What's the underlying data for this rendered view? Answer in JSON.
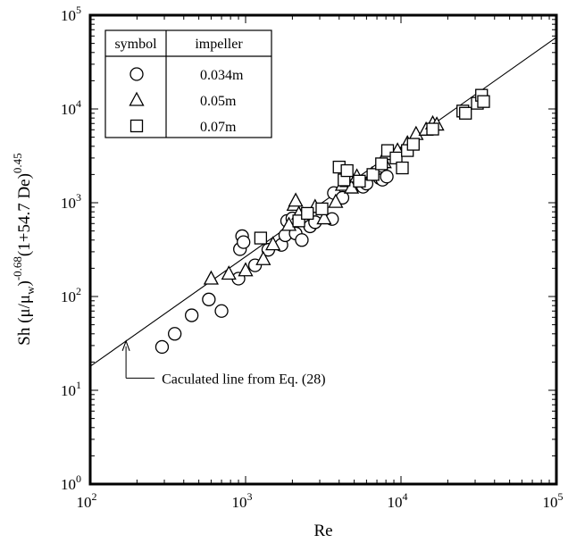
{
  "chart_data": {
    "type": "scatter",
    "xscale": "log",
    "yscale": "log",
    "xlabel": "Re",
    "ylabel": {
      "base": "Sh (μ/μ",
      "sub1": "w",
      "close": ")",
      "exp1": "-0.68",
      "mid": "(1+54.7 De)",
      "exp2": "0.45"
    },
    "xlim": [
      100,
      100000
    ],
    "ylim": [
      1,
      100000
    ],
    "x_ticks": [
      {
        "value": 100,
        "base": "10",
        "exp": "2"
      },
      {
        "value": 1000,
        "base": "10",
        "exp": "3"
      },
      {
        "value": 10000,
        "base": "10",
        "exp": "4"
      },
      {
        "value": 100000,
        "base": "10",
        "exp": "5"
      }
    ],
    "y_ticks": [
      {
        "value": 1,
        "base": "10",
        "exp": "0"
      },
      {
        "value": 10,
        "base": "10",
        "exp": "1"
      },
      {
        "value": 100,
        "base": "10",
        "exp": "2"
      },
      {
        "value": 1000,
        "base": "10",
        "exp": "3"
      },
      {
        "value": 10000,
        "base": "10",
        "exp": "4"
      },
      {
        "value": 100000,
        "base": "10",
        "exp": "5"
      }
    ],
    "legend": {
      "placement": "top-left",
      "headers": [
        "symbol",
        "impeller"
      ],
      "entries": [
        {
          "marker": "circle",
          "label": "0.034m"
        },
        {
          "marker": "triangle",
          "label": "0.05m"
        },
        {
          "marker": "square",
          "label": "0.07m"
        }
      ]
    },
    "line": {
      "points": [
        [
          100,
          18
        ],
        [
          100000,
          58000
        ]
      ]
    },
    "annotation": {
      "text": "Caculated line from Eq. (28)",
      "target": [
        170,
        35
      ],
      "elbow": [
        170,
        13.5
      ]
    },
    "series": [
      {
        "marker": "circle",
        "points": [
          [
            290,
            29
          ],
          [
            350,
            40
          ],
          [
            450,
            63
          ],
          [
            580,
            93
          ],
          [
            700,
            70
          ],
          [
            900,
            155
          ],
          [
            920,
            320
          ],
          [
            950,
            440
          ],
          [
            970,
            380
          ],
          [
            1150,
            215
          ],
          [
            1400,
            315
          ],
          [
            1700,
            355
          ],
          [
            1800,
            450
          ],
          [
            1850,
            640
          ],
          [
            2000,
            680
          ],
          [
            2100,
            470
          ],
          [
            2300,
            400
          ],
          [
            2600,
            560
          ],
          [
            2800,
            620
          ],
          [
            3600,
            670
          ],
          [
            3700,
            1270
          ],
          [
            4200,
            1130
          ],
          [
            5200,
            1550
          ],
          [
            5700,
            1480
          ],
          [
            6000,
            1600
          ],
          [
            7300,
            1830
          ],
          [
            7600,
            1760
          ],
          [
            8100,
            1900
          ]
        ]
      },
      {
        "marker": "triangle",
        "points": [
          [
            600,
            155
          ],
          [
            780,
            175
          ],
          [
            1000,
            190
          ],
          [
            1300,
            250
          ],
          [
            1500,
            360
          ],
          [
            1900,
            580
          ],
          [
            2050,
            950
          ],
          [
            2100,
            1050
          ],
          [
            2200,
            760
          ],
          [
            2800,
            900
          ],
          [
            3200,
            680
          ],
          [
            3800,
            1020
          ],
          [
            4200,
            1550
          ],
          [
            4500,
            1700
          ],
          [
            4800,
            1450
          ],
          [
            5200,
            1900
          ],
          [
            6500,
            2000
          ],
          [
            7800,
            2700
          ],
          [
            8000,
            3300
          ],
          [
            9500,
            3600
          ],
          [
            11000,
            4300
          ],
          [
            12500,
            5400
          ],
          [
            14500,
            6000
          ],
          [
            16000,
            7000
          ],
          [
            17000,
            6800
          ]
        ]
      },
      {
        "marker": "square",
        "points": [
          [
            1250,
            420
          ],
          [
            2200,
            640
          ],
          [
            2500,
            770
          ],
          [
            3100,
            860
          ],
          [
            4000,
            2400
          ],
          [
            4300,
            1750
          ],
          [
            4500,
            2200
          ],
          [
            5400,
            1700
          ],
          [
            6600,
            2000
          ],
          [
            7500,
            2600
          ],
          [
            8200,
            3600
          ],
          [
            9300,
            3000
          ],
          [
            10200,
            2350
          ],
          [
            11000,
            3600
          ],
          [
            12000,
            4200
          ],
          [
            16000,
            6100
          ],
          [
            25000,
            9500
          ],
          [
            26000,
            9000
          ],
          [
            31000,
            11500
          ],
          [
            33000,
            14000
          ],
          [
            34000,
            12000
          ]
        ]
      }
    ]
  }
}
